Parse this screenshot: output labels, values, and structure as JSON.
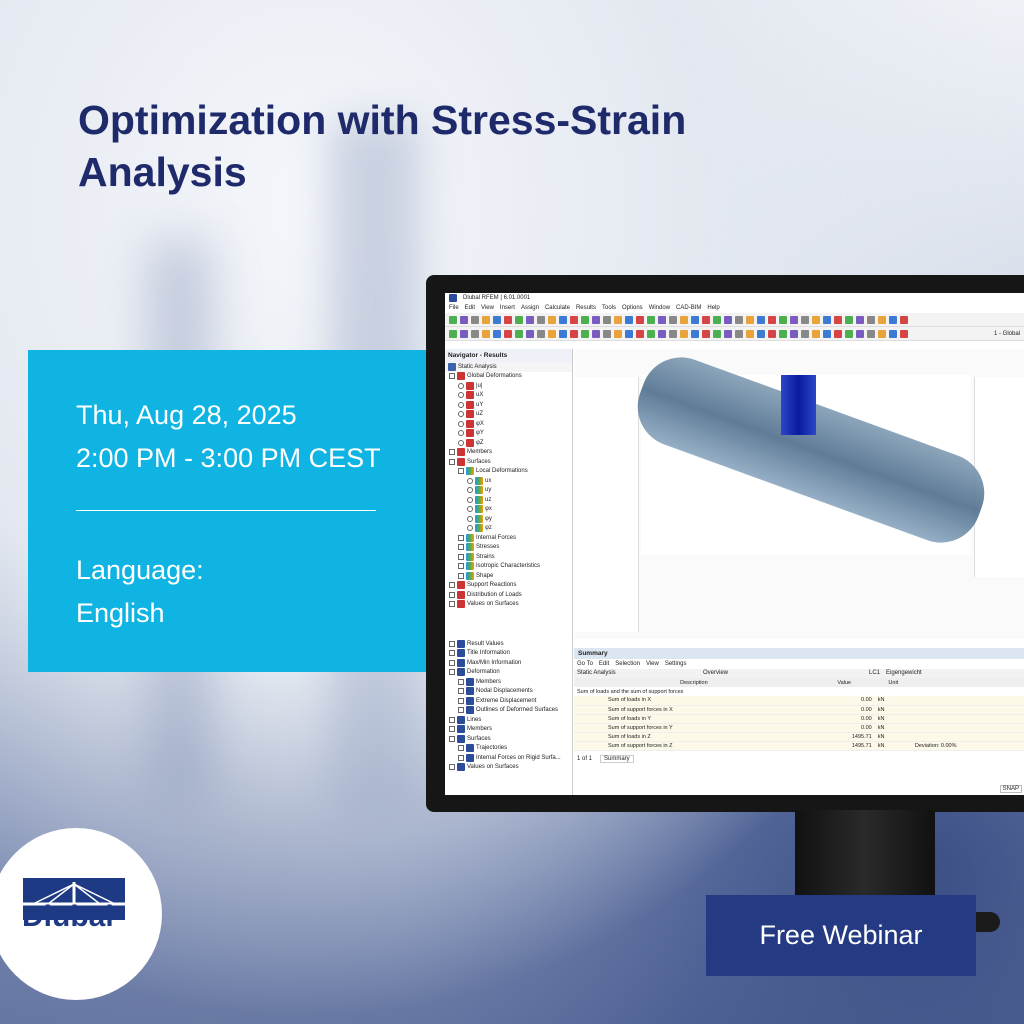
{
  "title": "Optimization with Stress-Strain Analysis",
  "event": {
    "date": "Thu, Aug 28, 2025",
    "time": "2:00 PM - 3:00 PM CEST",
    "language_label": "Language:",
    "language": "English"
  },
  "cta": "Free Webinar",
  "logo_text": "Dlubal",
  "colors": {
    "navy": "#1f2a6b",
    "cyan": "#10b4e2",
    "button": "#243a83"
  },
  "app": {
    "window_title": "Dlubal RFEM | 6.01.0001",
    "menu": [
      "File",
      "Edit",
      "View",
      "Insert",
      "Assign",
      "Calculate",
      "Results",
      "Tools",
      "Options",
      "Window",
      "CAD-BIM",
      "Help"
    ],
    "load_case": "LC1",
    "load_case_name": "Eigengewicht",
    "coord_system": "1 - Global",
    "navigator": {
      "title": "Navigator - Results",
      "analysis": "Static Analysis",
      "items": [
        "Global Deformations",
        "|u|",
        "uX",
        "uY",
        "uZ",
        "φX",
        "φY",
        "φZ",
        "Members",
        "Surfaces",
        "Local Deformations",
        "ux",
        "uy",
        "uz",
        "φx",
        "φy",
        "φz",
        "Internal Forces",
        "Stresses",
        "Strains",
        "Isotropic Characteristics",
        "Shape",
        "Support Reactions",
        "Distribution of Loads",
        "Values on Surfaces"
      ],
      "items2": [
        "Result Values",
        "Title Information",
        "Max/Min Information",
        "Deformation",
        "Members",
        "Nodal Displacements",
        "Extreme Displacement",
        "Outlines of Deformed Surfaces",
        "Lines",
        "Members",
        "Surfaces",
        "Trajectories",
        "Internal Forces on Rigid Surfa...",
        "Values on Surfaces"
      ]
    },
    "summary": {
      "title": "Summary",
      "menu": [
        "Go To",
        "Edit",
        "Selection",
        "View",
        "Settings"
      ],
      "analysis": "Static Analysis",
      "view": "Overview",
      "headers": [
        "Description",
        "Value",
        "Unit",
        ""
      ],
      "group": "Sum of loads and the sum of support forces",
      "rows": [
        [
          "Sum of loads in X",
          "0.00",
          "kN",
          ""
        ],
        [
          "Sum of support forces in X",
          "0.00",
          "kN",
          ""
        ],
        [
          "Sum of loads in Y",
          "0.00",
          "kN",
          ""
        ],
        [
          "Sum of support forces in Y",
          "0.00",
          "kN",
          ""
        ],
        [
          "Sum of loads in Z",
          "1495.71",
          "kN",
          ""
        ],
        [
          "Sum of support forces in Z",
          "1495.71",
          "kN",
          "Deviation: 0.00%"
        ]
      ],
      "pager": "1 of 1",
      "tab": "Summary"
    },
    "status": "SNAP"
  }
}
